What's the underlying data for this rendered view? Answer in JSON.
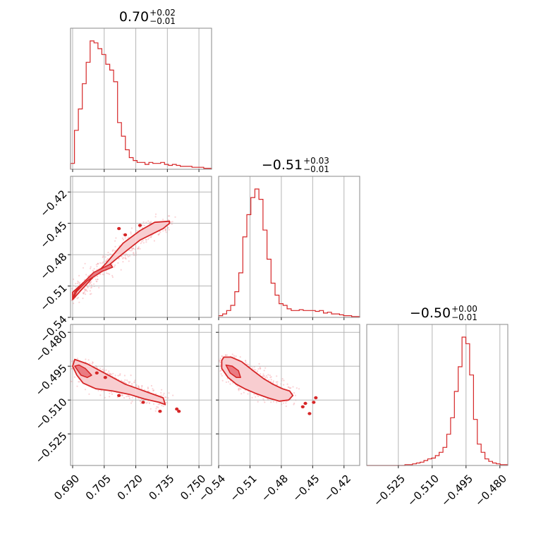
{
  "chart_data": {
    "type": "corner",
    "color": "#d62728",
    "parameters": [
      {
        "title": {
          "median": "0.70",
          "plus": "+0.02",
          "minus": "−0.01"
        },
        "range": [
          0.689,
          0.756
        ],
        "ticks": [
          0.69,
          0.705,
          0.72,
          0.735,
          0.75
        ],
        "tick_labels": [
          "0.690",
          "0.705",
          "0.720",
          "0.735",
          "0.750"
        ]
      },
      {
        "title": {
          "median": "−0.51",
          "plus": "+0.03",
          "minus": "−0.01"
        },
        "range": [
          -0.54,
          -0.405
        ],
        "ticks": [
          -0.54,
          -0.51,
          -0.48,
          -0.45,
          -0.42
        ],
        "tick_labels": [
          "−0.54",
          "−0.51",
          "−0.48",
          "−0.45",
          "−0.42"
        ]
      },
      {
        "title": {
          "median": "−0.50",
          "plus": "+0.00",
          "minus": "−0.01"
        },
        "range": [
          -0.539,
          -0.4765
        ],
        "ticks": [
          -0.525,
          -0.51,
          -0.495,
          -0.48
        ],
        "tick_labels": [
          "−0.525",
          "−0.510",
          "−0.495",
          "−0.480"
        ]
      }
    ],
    "histograms": [
      {
        "edges_start": 0.689,
        "edges_end": 0.756,
        "counts": [
          6,
          40,
          62,
          88,
          110,
          132,
          130,
          124,
          118,
          108,
          102,
          90,
          48,
          34,
          20,
          12,
          9,
          7,
          7,
          5,
          7,
          6,
          6,
          7,
          5,
          4,
          5,
          4,
          3,
          3,
          3,
          2,
          2,
          2,
          1,
          1
        ]
      },
      {
        "edges_start": -0.54,
        "edges_end": -0.405,
        "counts": [
          2,
          4,
          8,
          14,
          30,
          52,
          94,
          120,
          140,
          150,
          138,
          102,
          68,
          40,
          26,
          16,
          14,
          10,
          8,
          8,
          9,
          8,
          8,
          8,
          7,
          8,
          5,
          6,
          4,
          4,
          3,
          2,
          2,
          1,
          1
        ]
      },
      {
        "edges_start": -0.539,
        "edges_end": -0.4765,
        "counts": [
          0,
          0,
          0,
          0,
          0,
          0,
          0,
          0,
          0,
          0,
          1,
          1,
          2,
          3,
          4,
          6,
          8,
          9,
          12,
          16,
          22,
          38,
          58,
          90,
          120,
          156,
          148,
          110,
          56,
          26,
          16,
          8,
          5,
          3,
          2,
          1,
          1
        ]
      }
    ],
    "joint": [
      {
        "x_param": 0,
        "y_param": 1,
        "outer_contour": [
          [
            0.69,
            -0.523
          ],
          [
            0.69,
            -0.516
          ],
          [
            0.695,
            -0.507
          ],
          [
            0.703,
            -0.497
          ],
          [
            0.712,
            -0.482
          ],
          [
            0.722,
            -0.466
          ],
          [
            0.733,
            -0.455
          ],
          [
            0.736,
            -0.45
          ],
          [
            0.736,
            -0.448
          ],
          [
            0.729,
            -0.449
          ],
          [
            0.722,
            -0.457
          ],
          [
            0.714,
            -0.469
          ],
          [
            0.706,
            -0.488
          ],
          [
            0.699,
            -0.503
          ],
          [
            0.694,
            -0.514
          ]
        ],
        "inner_contour": [
          [
            0.69,
            -0.523
          ],
          [
            0.692,
            -0.515
          ],
          [
            0.697,
            -0.505
          ],
          [
            0.704,
            -0.496
          ],
          [
            0.709,
            -0.492
          ],
          [
            0.708,
            -0.489
          ],
          [
            0.7,
            -0.497
          ],
          [
            0.695,
            -0.507
          ],
          [
            0.691,
            -0.516
          ]
        ],
        "islands": [
          [
            0.715,
            -0.461
          ],
          [
            0.712,
            -0.455
          ],
          [
            0.722,
            -0.452
          ]
        ]
      },
      {
        "x_param": 0,
        "y_param": 2,
        "outer_contour": [
          [
            0.69,
            -0.495
          ],
          [
            0.692,
            -0.499
          ],
          [
            0.695,
            -0.5025
          ],
          [
            0.701,
            -0.505
          ],
          [
            0.709,
            -0.506
          ],
          [
            0.717,
            -0.5075
          ],
          [
            0.724,
            -0.5095
          ],
          [
            0.731,
            -0.511
          ],
          [
            0.734,
            -0.512
          ],
          [
            0.733,
            -0.509
          ],
          [
            0.727,
            -0.507
          ],
          [
            0.721,
            -0.505
          ],
          [
            0.715,
            -0.503
          ],
          [
            0.709,
            -0.5
          ],
          [
            0.703,
            -0.497
          ],
          [
            0.697,
            -0.494
          ],
          [
            0.691,
            -0.492
          ]
        ],
        "inner_contour": [
          [
            0.691,
            -0.495
          ],
          [
            0.694,
            -0.499
          ],
          [
            0.697,
            -0.5
          ],
          [
            0.699,
            -0.499
          ],
          [
            0.696,
            -0.496
          ],
          [
            0.693,
            -0.4945
          ]
        ],
        "islands": [
          [
            0.7015,
            -0.498
          ],
          [
            0.7055,
            -0.5
          ],
          [
            0.7395,
            -0.514
          ],
          [
            0.7405,
            -0.515
          ],
          [
            0.7235,
            -0.511
          ],
          [
            0.7315,
            -0.515
          ],
          [
            0.712,
            -0.508
          ]
        ]
      },
      {
        "x_param": 1,
        "y_param": 2,
        "outer_contour": [
          [
            -0.537,
            -0.4925
          ],
          [
            -0.537,
            -0.496
          ],
          [
            -0.531,
            -0.5
          ],
          [
            -0.523,
            -0.503
          ],
          [
            -0.515,
            -0.505
          ],
          [
            -0.505,
            -0.507
          ],
          [
            -0.493,
            -0.509
          ],
          [
            -0.482,
            -0.5105
          ],
          [
            -0.473,
            -0.51
          ],
          [
            -0.469,
            -0.508
          ],
          [
            -0.472,
            -0.506
          ],
          [
            -0.479,
            -0.505
          ],
          [
            -0.488,
            -0.503
          ],
          [
            -0.497,
            -0.5005
          ],
          [
            -0.507,
            -0.497
          ],
          [
            -0.518,
            -0.493
          ],
          [
            -0.528,
            -0.491
          ],
          [
            -0.535,
            -0.491
          ]
        ],
        "inner_contour": [
          [
            -0.533,
            -0.4945
          ],
          [
            -0.529,
            -0.498
          ],
          [
            -0.523,
            -0.5
          ],
          [
            -0.519,
            -0.5
          ],
          [
            -0.521,
            -0.497
          ],
          [
            -0.527,
            -0.495
          ]
        ],
        "islands": [
          [
            -0.457,
            -0.5115
          ],
          [
            -0.4595,
            -0.513
          ],
          [
            -0.453,
            -0.516
          ],
          [
            -0.449,
            -0.511
          ],
          [
            -0.447,
            -0.509
          ]
        ]
      }
    ]
  }
}
